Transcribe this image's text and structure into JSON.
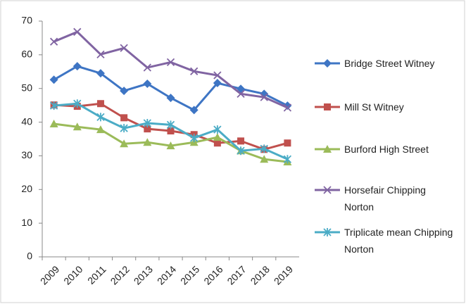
{
  "chart_data": {
    "type": "line",
    "categories": [
      "2009",
      "2010",
      "2011",
      "2012",
      "2013",
      "2014",
      "2015",
      "2016",
      "2017",
      "2018",
      "2019"
    ],
    "ylim": [
      0,
      70
    ],
    "yticks": [
      0,
      10,
      20,
      30,
      40,
      50,
      60,
      70
    ],
    "series": [
      {
        "name": "Bridge Street Witney",
        "color": "#3e75c4",
        "marker": "diamond",
        "values": [
          52.6,
          56.6,
          54.5,
          49.3,
          51.4,
          47.2,
          43.6,
          51.6,
          49.9,
          48.4,
          44.9
        ]
      },
      {
        "name": "Mill St Witney",
        "color": "#c0504d",
        "marker": "square",
        "values": [
          45.1,
          44.7,
          45.5,
          41.3,
          38.0,
          37.4,
          36.3,
          33.8,
          34.4,
          31.9,
          33.8
        ]
      },
      {
        "name": "Burford High Street",
        "color": "#9bbb59",
        "marker": "triangle",
        "values": [
          39.5,
          38.6,
          37.8,
          33.6,
          34.0,
          33.0,
          34.0,
          35.5,
          31.5,
          29.0,
          28.2
        ]
      },
      {
        "name": "Horsefair Chipping Norton",
        "color": "#8064a2",
        "marker": "x",
        "values": [
          63.9,
          66.8,
          60.1,
          62.0,
          56.2,
          57.8,
          55.1,
          53.9,
          48.4,
          47.4,
          44.3
        ]
      },
      {
        "name": "Triplicate mean Chipping Norton",
        "color": "#4bacc6",
        "marker": "star",
        "values": [
          44.9,
          45.5,
          41.5,
          38.2,
          39.7,
          39.2,
          35.3,
          37.8,
          31.5,
          32.1,
          29.0
        ]
      }
    ]
  }
}
